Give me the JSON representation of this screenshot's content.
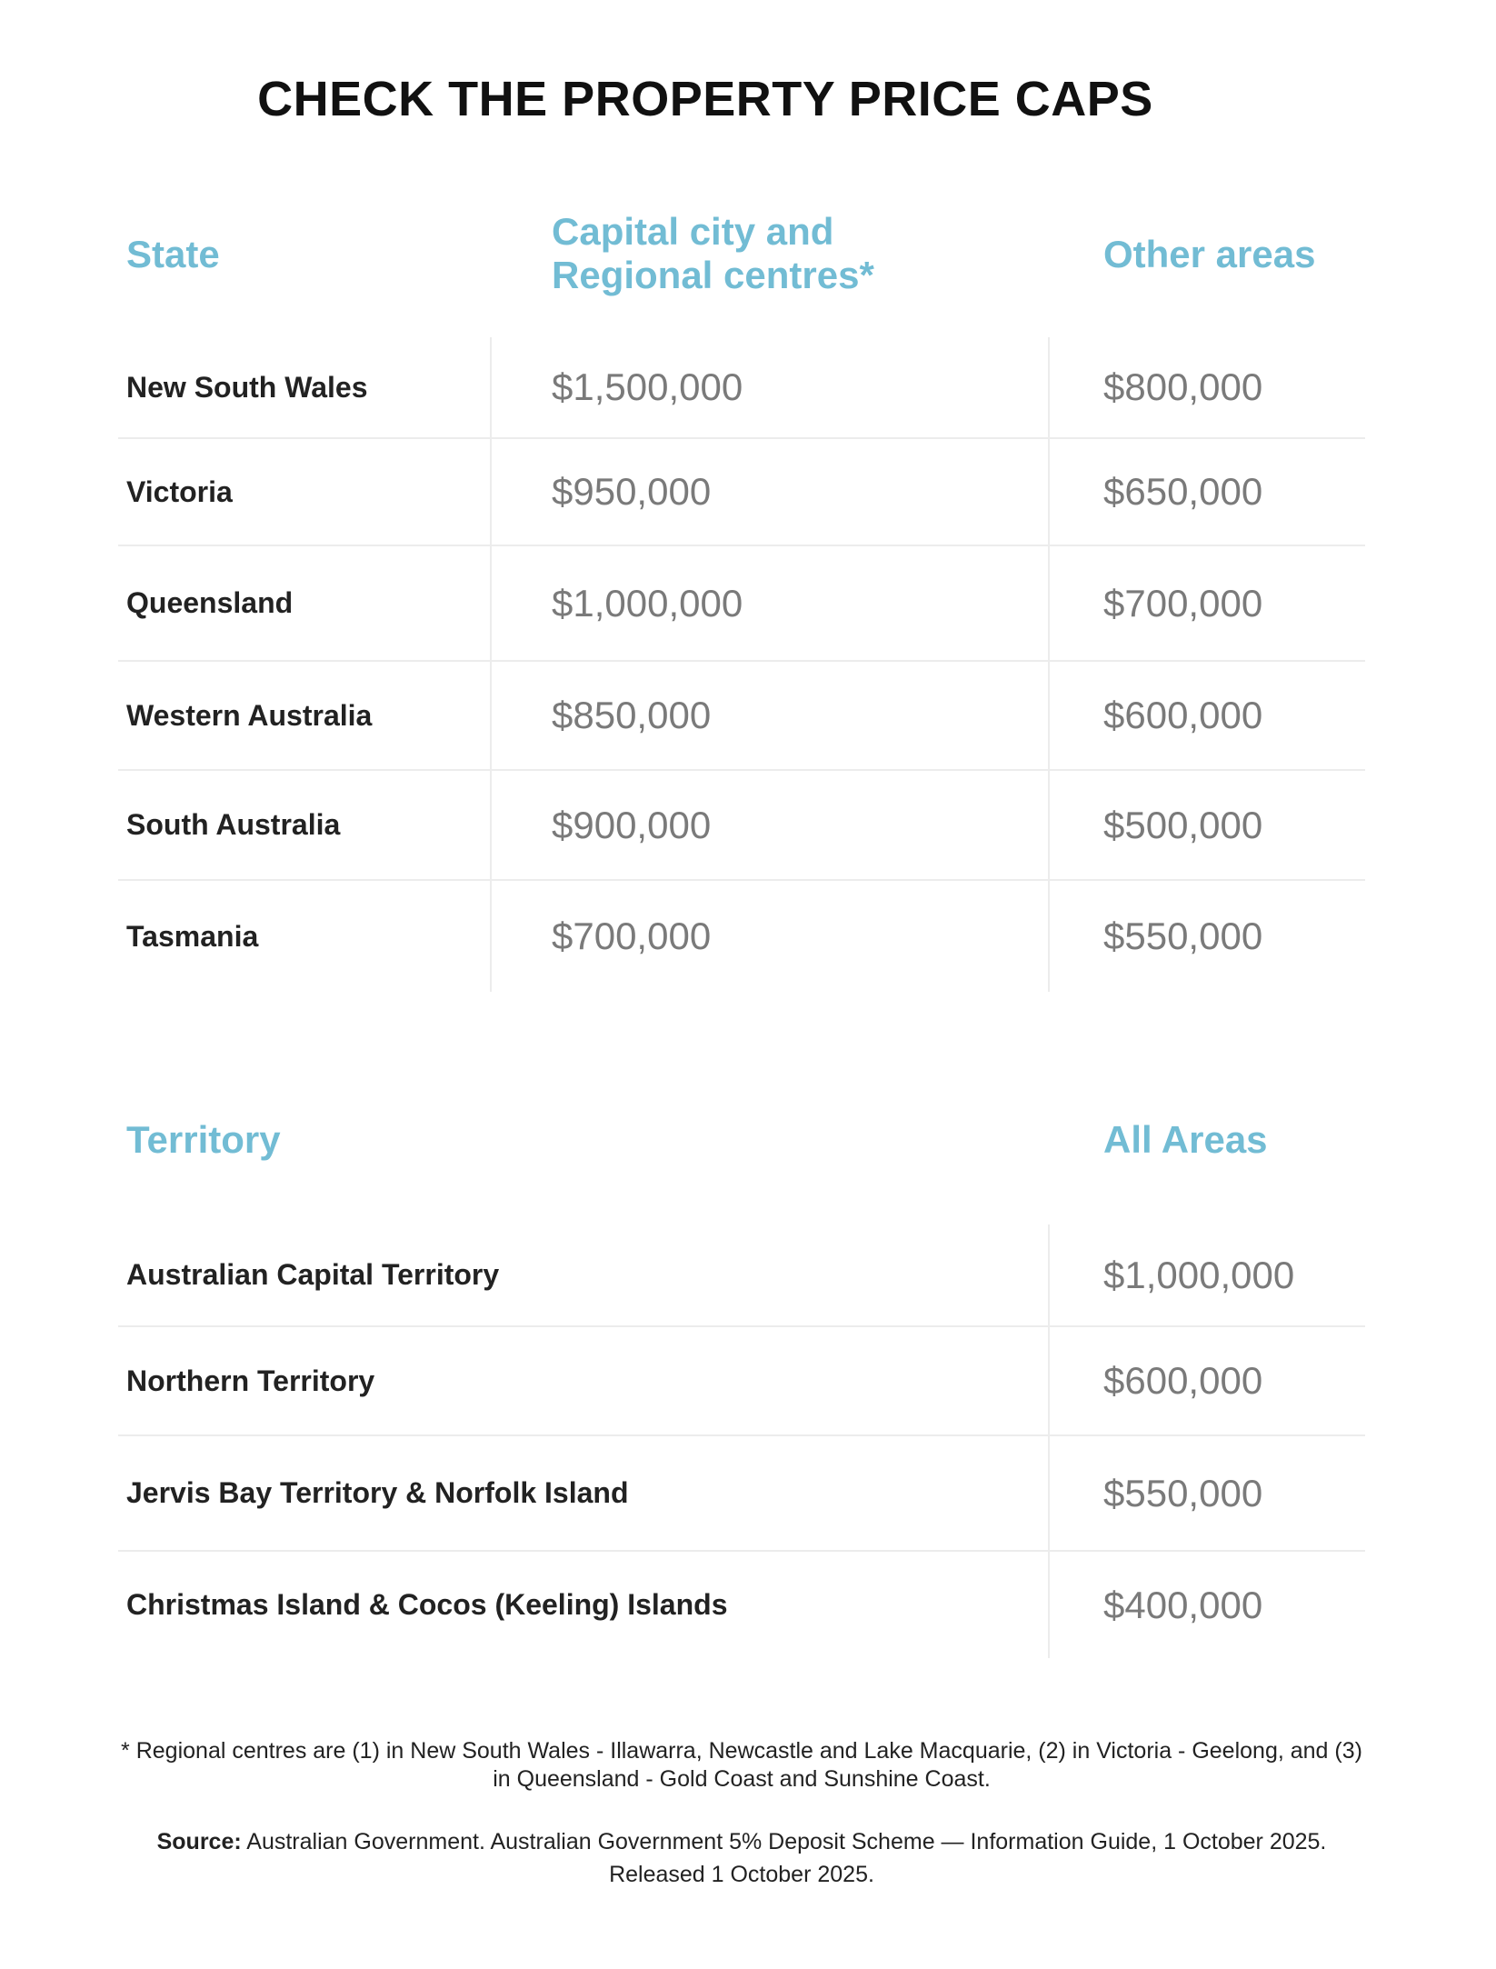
{
  "title": "CHECK THE PROPERTY PRICE CAPS",
  "states_table": {
    "headers": [
      "State",
      "Capital city and Regional centres*",
      "Other areas"
    ],
    "header_capital_lines": [
      "Capital city and",
      "Regional centres*"
    ],
    "rows": [
      {
        "state": "New South Wales",
        "capital": "$1,500,000",
        "other": "$800,000"
      },
      {
        "state": "Victoria",
        "capital": "$950,000",
        "other": "$650,000"
      },
      {
        "state": "Queensland",
        "capital": "$1,000,000",
        "other": "$700,000"
      },
      {
        "state": "Western Australia",
        "capital": "$850,000",
        "other": "$600,000"
      },
      {
        "state": "South Australia",
        "capital": "$900,000",
        "other": "$500,000"
      },
      {
        "state": "Tasmania",
        "capital": "$700,000",
        "other": "$550,000"
      }
    ]
  },
  "territory_table": {
    "headers": [
      "Territory",
      "All Areas"
    ],
    "rows": [
      {
        "territory": "Australian Capital Territory",
        "all": "$1,000,000"
      },
      {
        "territory": "Northern Territory",
        "all": "$600,000"
      },
      {
        "territory": "Jervis Bay Territory & Norfolk Island",
        "all": "$550,000"
      },
      {
        "territory": "Christmas Island & Cocos (Keeling) Islands",
        "all": "$400,000"
      }
    ]
  },
  "footnote": "* Regional centres are (1) in New South Wales - Illawarra, Newcastle and Lake Macquarie, (2) in Victoria - Geelong, and (3) in Queensland - Gold Coast and Sunshine Coast.",
  "source_label": "Source:",
  "source_text": "Australian Government. Australian Government 5% Deposit Scheme — Information Guide, 1 October 2025. Released 1 October 2025.",
  "colors": {
    "header": "#72bcd4",
    "value": "#7a7a7a",
    "name": "#222222",
    "divider": "#ececec"
  }
}
